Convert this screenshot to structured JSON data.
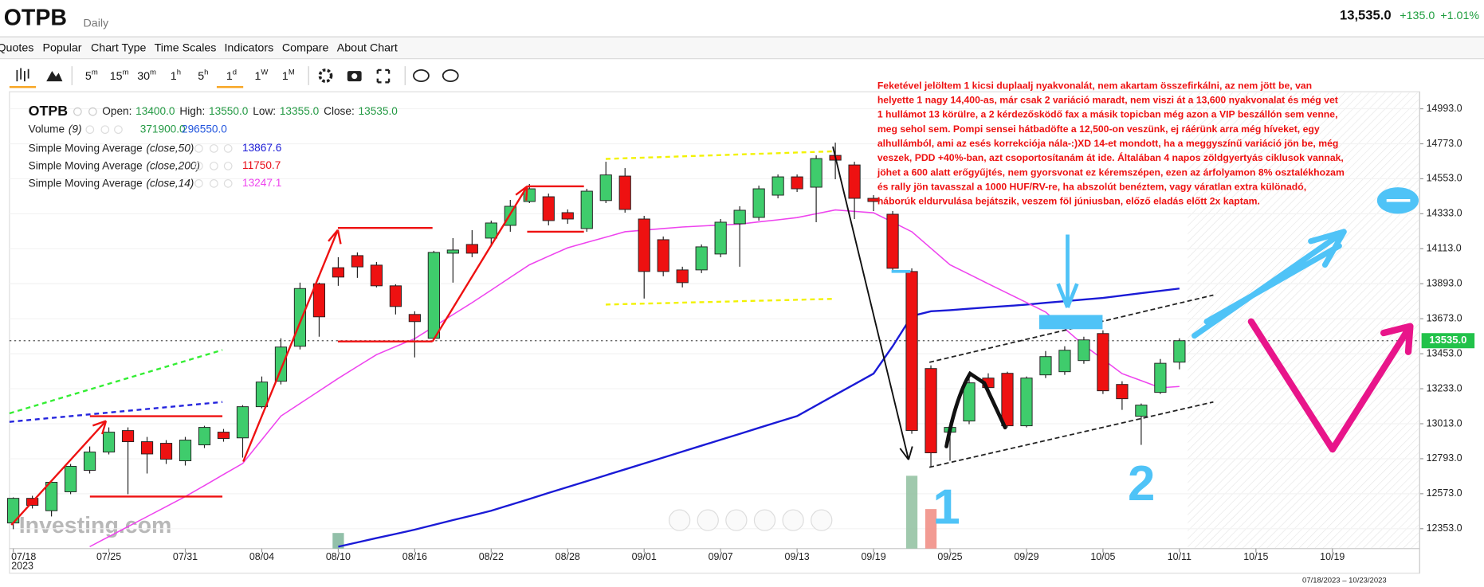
{
  "header": {
    "symbol": "OTPB",
    "interval": "Daily",
    "price": "13,535.0",
    "change": "+135.0",
    "change_pct": "+1.01%"
  },
  "menu": [
    "Quotes",
    "Popular",
    "Chart Type",
    "Time Scales",
    "Indicators",
    "Compare",
    "About Chart"
  ],
  "timeframes": [
    {
      "num": "5",
      "unit": "m"
    },
    {
      "num": "15",
      "unit": "m"
    },
    {
      "num": "30",
      "unit": "m"
    },
    {
      "num": "1",
      "unit": "h"
    },
    {
      "num": "5",
      "unit": "h"
    },
    {
      "num": "1",
      "unit": "d"
    },
    {
      "num": "1",
      "unit": "W"
    },
    {
      "num": "1",
      "unit": "M"
    }
  ],
  "chart_data": {
    "type": "candlestick",
    "title": "OTPB",
    "legend": {
      "items": [
        {
          "label": "Open:",
          "value": "13400.0"
        },
        {
          "label": "High:",
          "value": "13550.0"
        },
        {
          "label": "Low:",
          "value": "13355.0"
        },
        {
          "label": "Close:",
          "value": "13535.0"
        }
      ],
      "value_color": "#249a44"
    },
    "volume": {
      "name": "Volume",
      "params": "(9)",
      "readings": [
        "371900.0",
        "296550.0"
      ],
      "reading_colors": [
        "#249a44",
        "#2255dd"
      ],
      "lim": [
        0,
        1100000
      ],
      "bars": [
        null,
        null,
        null,
        null,
        null,
        null,
        null,
        null,
        null,
        null,
        null,
        null,
        null,
        null,
        null,
        null,
        null,
        165000,
        null,
        null,
        null,
        null,
        null,
        null,
        null,
        null,
        null,
        null,
        null,
        null,
        null,
        null,
        null,
        null,
        null,
        null,
        null,
        null,
        null,
        null,
        null,
        null,
        null,
        null,
        null,
        null,
        null,
        770000,
        418000,
        null,
        null,
        null,
        null,
        null,
        null,
        null,
        null,
        null,
        null,
        null,
        null,
        null,
        null,
        null,
        null,
        null,
        null,
        null,
        null,
        null,
        null,
        null,
        null,
        null
      ],
      "bar_colors": [
        null,
        null,
        null,
        null,
        null,
        null,
        null,
        null,
        null,
        null,
        null,
        null,
        null,
        null,
        null,
        null,
        null,
        "#7fb59a",
        null,
        null,
        null,
        null,
        null,
        null,
        null,
        null,
        null,
        null,
        null,
        null,
        null,
        null,
        null,
        null,
        null,
        null,
        null,
        null,
        null,
        null,
        null,
        null,
        null,
        null,
        null,
        null,
        null,
        "#8fbf9f",
        "#f08a80",
        null,
        null,
        null,
        null,
        null,
        null,
        null,
        null,
        null,
        null,
        null,
        null,
        null,
        null,
        null,
        null,
        null,
        null,
        null,
        null,
        null,
        null,
        null,
        null,
        null
      ]
    },
    "indicators": [
      {
        "name": "Simple Moving Average",
        "params": "(close,50)",
        "value": "13867.6",
        "color": "#1a1ad6",
        "values": [
          null,
          null,
          null,
          null,
          null,
          null,
          null,
          null,
          null,
          null,
          null,
          null,
          null,
          null,
          null,
          null,
          null,
          12240,
          12267,
          12294,
          12320,
          12347,
          12377,
          12407,
          12436,
          12466,
          12503,
          12540,
          12578,
          12615,
          12652,
          12689,
          12726,
          12763,
          12800,
          12838,
          12875,
          12912,
          12949,
          12987,
          13024,
          13061,
          13128,
          13195,
          13261,
          13328,
          13500,
          13690,
          13720,
          13727,
          13736,
          13745,
          13753,
          13762,
          13773,
          13783,
          13794,
          13804,
          13819,
          13834,
          13848,
          13863,
          null,
          null,
          null,
          null,
          null,
          null,
          null,
          null,
          null,
          null,
          null,
          null
        ]
      },
      {
        "name": "Simple Moving Average",
        "params": "(close,200)",
        "value": "11750.7",
        "color": "#e8101a"
      },
      {
        "name": "Simple Moving Average",
        "params": "(close,14)",
        "value": "13247.1",
        "color": "#ee44ee",
        "values": [
          null,
          null,
          null,
          null,
          12240,
          12303,
          12366,
          12429,
          12492,
          12555,
          12624,
          12694,
          12763,
          12912,
          13061,
          13140,
          13219,
          13298,
          13373,
          13447,
          13498,
          13548,
          13623,
          13699,
          13774,
          13853,
          13933,
          14012,
          14066,
          14119,
          14153,
          14186,
          14220,
          14230,
          14240,
          14250,
          14256,
          14262,
          14268,
          14282,
          14295,
          14309,
          14333,
          14357,
          14348,
          14339,
          14280,
          14220,
          14116,
          14012,
          13953,
          13893,
          13834,
          13775,
          13715,
          13611,
          13507,
          13418,
          13328,
          13284,
          13239,
          13247,
          null,
          null,
          null,
          null,
          null,
          null,
          null,
          null,
          null,
          null,
          null,
          null
        ]
      }
    ],
    "categories": [
      "07/18",
      null,
      null,
      null,
      null,
      "07/25",
      null,
      null,
      null,
      "07/31",
      null,
      null,
      null,
      "08/04",
      null,
      null,
      null,
      "08/10",
      null,
      null,
      null,
      "08/16",
      null,
      null,
      null,
      "08/22",
      null,
      null,
      null,
      "08/28",
      null,
      null,
      null,
      "09/01",
      null,
      null,
      null,
      "09/07",
      null,
      null,
      null,
      "09/13",
      null,
      null,
      null,
      "09/19",
      null,
      null,
      null,
      "09/25",
      null,
      null,
      null,
      "09/29",
      null,
      null,
      null,
      "10/05",
      null,
      null,
      null,
      "10/11",
      null,
      null,
      null,
      "10/15",
      null,
      null,
      null,
      "10/19",
      null,
      null,
      null,
      null
    ],
    "year_label": "2023",
    "open": [
      12389,
      12544,
      12466,
      12585,
      12720,
      12835,
      12970,
      12900,
      12890,
      12780,
      12880,
      12960,
      12924,
      13120,
      13280,
      13500,
      13893,
      13994,
      14070,
      14010,
      13880,
      13700,
      13550,
      14085,
      14140,
      14180,
      14260,
      14410,
      14440,
      14340,
      14240,
      14416,
      14570,
      14300,
      14170,
      13980,
      13980,
      14080,
      14270,
      14310,
      14450,
      14565,
      14500,
      14700,
      14640,
      14430,
      14330,
      13970,
      13360,
      12960,
      13030,
      13300,
      13330,
      13000,
      13320,
      13340,
      13410,
      13580,
      13260,
      13060,
      13210,
      13400,
      null,
      null,
      null,
      null,
      null,
      null,
      null,
      null,
      null,
      null,
      null,
      null
    ],
    "high": [
      12550,
      12560,
      12660,
      12760,
      12870,
      12990,
      12990,
      12930,
      12910,
      12930,
      13000,
      12980,
      13130,
      13310,
      13550,
      13900,
      13900,
      14060,
      14090,
      14030,
      13890,
      13720,
      14100,
      14180,
      14230,
      14290,
      14420,
      14520,
      14460,
      14360,
      14490,
      14660,
      14620,
      14320,
      14190,
      14000,
      14140,
      14300,
      14380,
      14510,
      14580,
      14580,
      14700,
      14780,
      14660,
      14450,
      14350,
      13990,
      13380,
      13020,
      13300,
      13330,
      13340,
      13310,
      13470,
      13500,
      13560,
      13600,
      13280,
      13140,
      13420,
      13550,
      null,
      null,
      null,
      null,
      null,
      null,
      null,
      null,
      null,
      null,
      null,
      null
    ],
    "low": [
      12350,
      12480,
      12430,
      12570,
      12700,
      12820,
      12570,
      12700,
      12760,
      12750,
      12860,
      12900,
      12800,
      13110,
      13260,
      13480,
      13560,
      13880,
      13930,
      13870,
      13700,
      13430,
      13540,
      13900,
      14060,
      14130,
      14220,
      14400,
      14260,
      14270,
      14220,
      14400,
      14340,
      13800,
      13940,
      13870,
      13960,
      14060,
      14000,
      14290,
      14430,
      14470,
      14280,
      14550,
      14300,
      14350,
      13980,
      12950,
      12740,
      12780,
      13010,
      13200,
      12990,
      12990,
      13300,
      13320,
      13390,
      13200,
      13100,
      12880,
      13200,
      13355,
      null,
      null,
      null,
      null,
      null,
      null,
      null,
      null,
      null,
      null,
      null,
      null
    ],
    "close": [
      12544,
      12500,
      12645,
      12745,
      12835,
      12960,
      12900,
      12823,
      12790,
      12910,
      12990,
      12920,
      13120,
      13275,
      13495,
      13863,
      13685,
      13935,
      13999,
      13880,
      13750,
      13655,
      14090,
      14105,
      14085,
      14275,
      14380,
      14490,
      14290,
      14300,
      14475,
      14577,
      14360,
      13970,
      13970,
      13900,
      14125,
      14280,
      14355,
      14490,
      14565,
      14490,
      14680,
      14670,
      14430,
      14410,
      13990,
      12970,
      12830,
      12990,
      13270,
      13240,
      13000,
      13300,
      13435,
      13475,
      13540,
      13220,
      13170,
      13130,
      13393,
      13535,
      null,
      null,
      null,
      null,
      null,
      null,
      null,
      null,
      null,
      null,
      null,
      null
    ],
    "up_color": "#3fcc6c",
    "down_color": "#ee1111",
    "ylim": [
      12228,
      15100
    ],
    "yticks": [
      {
        "value": 12353,
        "label": "12353.0"
      },
      {
        "value": 12573,
        "label": "12573.0"
      },
      {
        "value": 12793,
        "label": "12793.0"
      },
      {
        "value": 13013,
        "label": "13013.0"
      },
      {
        "value": 13233,
        "label": "13233.0"
      },
      {
        "value": 13453,
        "label": "13453.0"
      },
      {
        "value": 13673,
        "label": "13673.0"
      },
      {
        "value": 13893,
        "label": "13893.0"
      },
      {
        "value": 14113,
        "label": "14113.0"
      },
      {
        "value": 14333,
        "label": "14333.0"
      },
      {
        "value": 14553,
        "label": "14553.0"
      },
      {
        "value": 14773,
        "label": "14773.0"
      },
      {
        "value": 14993,
        "label": "14993.0"
      }
    ],
    "grid": true,
    "price_tag": {
      "value": 13535,
      "label": "13535.0",
      "color": "#22c24a"
    },
    "date_range": "07/18/2023 – 10/23/2023",
    "watermark": "Investing.com",
    "marks": [
      "1",
      "2"
    ],
    "annotation": [
      "Feketével jelöltem 1 kicsi duplaalj nyakvonalát, nem akartam összefirkálni, az nem jött be, van",
      "helyette 1 nagy 14,400-as, már csak 2 variáció maradt, nem viszi át a 13,600 nyakvonalat és még vet",
      "1 hullámot 13 körülre, a 2 kérdezősködő fax a másik topicban még azon a VIP beszállón sem venne,",
      "meg sehol sem. Pompi sensei hátbadöfte a 12,500-on veszünk, ej ráérünk arra még híveket, egy",
      "alhullámból, ami az esés korrekciója nála-:)XD 14-et mondott, ha a meggyszínű variáció jön be, még",
      "veszek, PDD +40%-ban, azt csoportosítanám át ide. Általában 4 napos zöldgyertyás ciklusok vannak,",
      "jöhet a 600 alatt erőgyűjtés, nem gyorsvonat ez kéremszépen, ezen az árfolyamon 8% osztalékhozam",
      "és rally jön tavasszal a 1000 HUF/RV-re, ha abszolút benéztem, vagy váratlan extra különadó,",
      "háborúk eldurvulása bejátszik, veszem föl júniusban, előző eladás előtt 2x kaptam."
    ]
  }
}
